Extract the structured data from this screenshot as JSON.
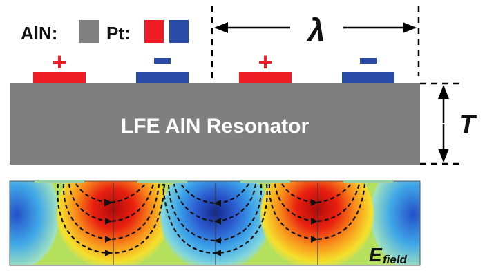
{
  "legend": {
    "aln_label": "AlN:",
    "pt_label": "Pt:",
    "aln_color": "#808080",
    "pt_positive_color": "#ee1c24",
    "pt_negative_color": "#2b4ba8"
  },
  "electrodes": [
    {
      "polarity": "+",
      "sign": "+"
    },
    {
      "polarity": "-",
      "sign": "−"
    },
    {
      "polarity": "+",
      "sign": "+"
    },
    {
      "polarity": "-",
      "sign": "−"
    }
  ],
  "wavelength_label": "λ",
  "thickness_label": "T",
  "resonator_label": "LFE AlN Resonator",
  "field_label": {
    "main": "E",
    "sub": "field"
  },
  "colors": {
    "substrate": "#7f7f7f",
    "field_hot": "#c81414",
    "field_cold": "#1e3c96",
    "field_neutral": "#f0d22a"
  }
}
